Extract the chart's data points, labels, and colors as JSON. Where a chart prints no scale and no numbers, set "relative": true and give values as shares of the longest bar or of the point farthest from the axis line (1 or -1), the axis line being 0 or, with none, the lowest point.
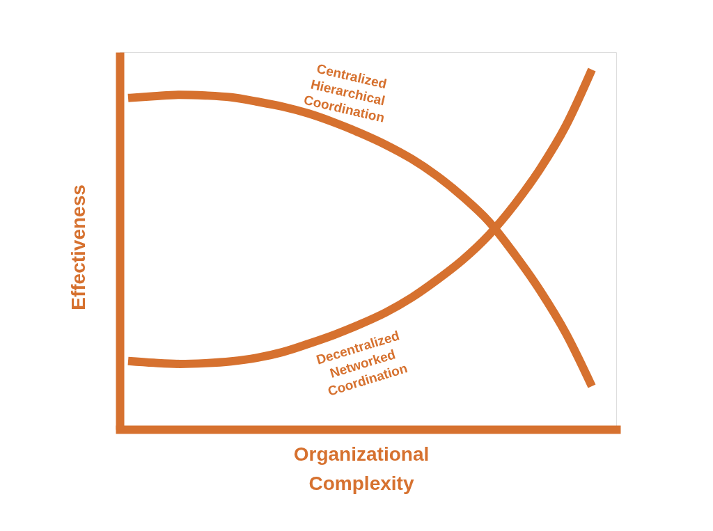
{
  "chart_data": {
    "type": "line",
    "relative": true,
    "xlabel": "Organizational Complexity",
    "ylabel": "Effectiveness",
    "line_style": "solid",
    "categories": [
      null,
      null,
      null,
      null,
      null,
      null,
      null,
      null,
      null,
      null,
      null,
      null,
      null,
      null,
      null,
      null,
      null,
      null,
      null
    ],
    "series": [
      {
        "name": "Centralized Hierarchical Coordination",
        "color": "#d6712f",
        "values": [
          0.921,
          0.926,
          0.93,
          0.928,
          0.923,
          0.911,
          0.897,
          0.878,
          0.853,
          0.824,
          0.791,
          0.752,
          0.704,
          0.646,
          0.578,
          0.487,
          0.385,
          0.266,
          0.12
        ]
      },
      {
        "name": "Decentralized Networked Coordination",
        "color": "#d6712f",
        "values": [
          0.19,
          0.185,
          0.182,
          0.184,
          0.189,
          0.199,
          0.215,
          0.238,
          0.263,
          0.292,
          0.325,
          0.366,
          0.416,
          0.472,
          0.54,
          0.625,
          0.725,
          0.845,
          1.0
        ]
      }
    ]
  }
}
